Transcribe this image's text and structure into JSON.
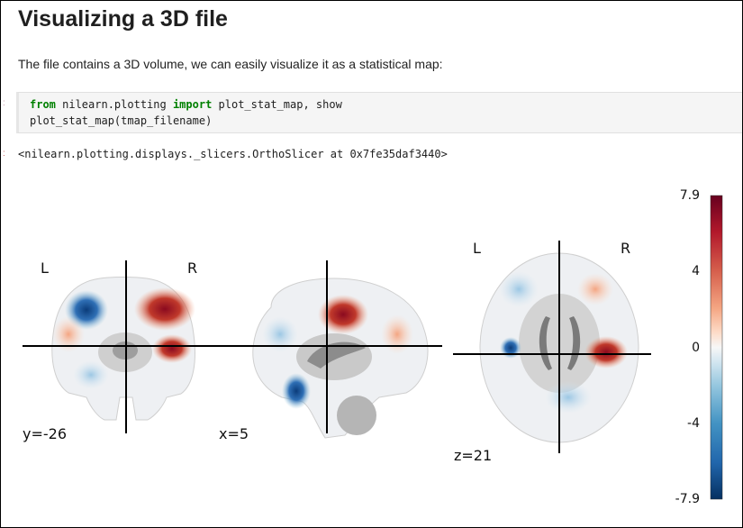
{
  "notebook": {
    "heading": "Visualizing a 3D file",
    "intro": "The file contains a 3D volume, we can easily visualize it as a statistical map:",
    "code": {
      "line1": {
        "kw1": "from",
        "mod": " nilearn.plotting ",
        "kw2": "import",
        "rest": " plot_stat_map, show"
      },
      "line2": "plot_stat_map(tmap_filename)"
    },
    "output": "<nilearn.plotting.displays._slicers.OrthoSlicer at 0x7fe35daf3440>"
  },
  "figure": {
    "panels": [
      {
        "view": "coronal",
        "coord_label": "y=-26",
        "left_label": "L",
        "right_label": "R"
      },
      {
        "view": "sagittal",
        "coord_label": "x=5"
      },
      {
        "view": "axial",
        "coord_label": "z=21",
        "left_label": "L",
        "right_label": "R"
      }
    ],
    "colorbar": {
      "max_label": "7.9",
      "min_label": "-7.9",
      "ticks": [
        "4",
        "0",
        "-4"
      ],
      "colors": {
        "top": "#67001f",
        "mid": "#f7f7f7",
        "bottom": "#053061"
      }
    }
  },
  "colors": {
    "pos": "#b2182b",
    "neg": "#2166ac",
    "brain": "#bdbdbd"
  }
}
